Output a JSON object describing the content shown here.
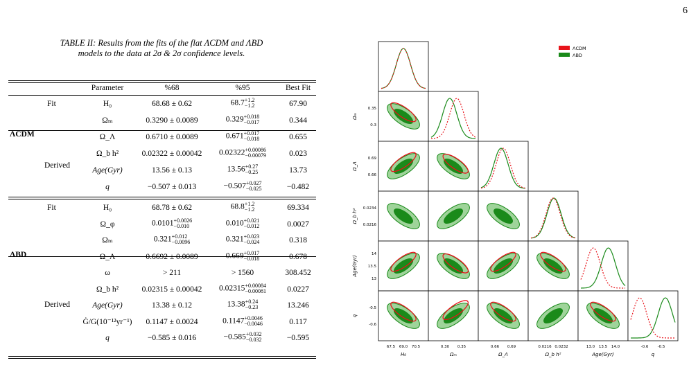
{
  "page_number": "6",
  "caption": {
    "line1": "TABLE II: Results from the fits of the flat ΛCDM and ΛBD",
    "line2": "models to the data at 2σ & 2σ confidence levels."
  },
  "table": {
    "headers": [
      "Parameter",
      "%68",
      "%95",
      "Best Fit"
    ],
    "lcdm": {
      "model": "ΛCDM",
      "fit_label": "Fit",
      "derived_label": "Derived",
      "rows": [
        {
          "param": "H₀",
          "c68": "68.68 ± 0.62",
          "c95": "68.7",
          "c95_up": "+1.2",
          "c95_dn": "−1.2",
          "best": "67.90"
        },
        {
          "param": "Ωₘ",
          "c68": "0.3290 ± 0.0089",
          "c95": "0.329",
          "c95_up": "+0.018",
          "c95_dn": "−0.017",
          "best": "0.344"
        },
        {
          "param": "Ω_Λ",
          "c68": "0.6710 ± 0.0089",
          "c95": "0.671",
          "c95_up": "+0.017",
          "c95_dn": "−0.018",
          "best": "0.655"
        },
        {
          "param": "Ω_b h²",
          "c68": "0.02322 ± 0.00042",
          "c95": "0.02322",
          "c95_up": "+0.00086",
          "c95_dn": "−0.00079",
          "best": "0.023"
        },
        {
          "param": "Age(Gyr)",
          "c68": "13.56 ± 0.13",
          "c95": "13.56",
          "c95_up": "+0.27",
          "c95_dn": "−0.25",
          "best": "13.73"
        },
        {
          "param": "q",
          "c68": "−0.507 ± 0.013",
          "c95": "−0.507",
          "c95_up": "+0.027",
          "c95_dn": "−0.025",
          "best": "−0.482"
        }
      ]
    },
    "lbd": {
      "model": "ΛBD",
      "fit_label": "Fit",
      "derived_label": "Derived",
      "rows": [
        {
          "param": "H₀",
          "c68": "68.78 ± 0.62",
          "c95": "68.8",
          "c95_up": "+1.2",
          "c95_dn": "−1.2",
          "best": "69.334"
        },
        {
          "param": "Ω_φ",
          "c68": "0.0101",
          "c68_up": "+0.0026",
          "c68_dn": "−0.010",
          "c95": "0.010",
          "c95_up": "+0.021",
          "c95_dn": "−0.012",
          "best": "0.0027"
        },
        {
          "param": "Ωₘ",
          "c68": "0.321",
          "c68_up": "+0.012",
          "c68_dn": "−0.0096",
          "c95": "0.321",
          "c95_up": "+0.023",
          "c95_dn": "−0.024",
          "best": "0.318"
        },
        {
          "param": "Ω_Λ",
          "c68": "0.6692 ± 0.0089",
          "c95": "0.669",
          "c95_up": "+0.017",
          "c95_dn": "−0.018",
          "best": "0.678"
        },
        {
          "param": "ω",
          "c68": "> 211",
          "c95": "> 1560",
          "best": "308.452"
        },
        {
          "param": "Ω_b h²",
          "c68": "0.02315 ± 0.00042",
          "c95": "0.02315",
          "c95_up": "+0.00084",
          "c95_dn": "−0.00081",
          "best": "0.0227"
        },
        {
          "param": "Age(Gyr)",
          "c68": "13.38 ± 0.12",
          "c95": "13.38",
          "c95_up": "+0.24",
          "c95_dn": "−0.23",
          "best": "13.246"
        },
        {
          "param": "Ġ/G(10⁻¹²yr⁻¹)",
          "c68": "0.1147 ± 0.0024",
          "c95": "0.1147",
          "c95_up": "+0.0046",
          "c95_dn": "−0.0046",
          "best": "0.117"
        },
        {
          "param": "q",
          "c68": "−0.585 ± 0.016",
          "c95": "−0.585",
          "c95_up": "+0.032",
          "c95_dn": "−0.032",
          "best": "−0.595"
        }
      ]
    }
  },
  "corner_plot": {
    "legend": [
      "ΛCDM",
      "ΛBD"
    ],
    "colors": {
      "lcdm": "#e8141b",
      "lbd": "#1a8a1a",
      "lbd_light": "#9fd49a",
      "lcdm_light": "#f5b3b3"
    },
    "x_labels": [
      "H₀",
      "Ωₘ",
      "Ω_Λ",
      "Ω_b h²",
      "Age(Gyr)",
      "q"
    ],
    "y_labels": [
      "Ωₘ",
      "Ω_Λ",
      "Ω_b h²",
      "Age(Gyr)",
      "q"
    ],
    "x_ticks": [
      [
        "67.5",
        "69.0",
        "70.5"
      ],
      [
        "0.30",
        "0.35"
      ],
      [
        "0.66",
        "0.69"
      ],
      [
        "0.0216",
        "0.0232"
      ],
      [
        "13.0",
        "13.5",
        "14.0"
      ],
      [
        "-0.6",
        "-0.5"
      ]
    ],
    "y_ticks": [
      [
        "0.35",
        "0.3"
      ],
      [
        "0.69",
        "0.66"
      ],
      [
        "0.0234",
        "0.0216"
      ],
      [
        "14",
        "13.5",
        "13"
      ],
      [
        "-0.5",
        "-0.6"
      ]
    ]
  }
}
